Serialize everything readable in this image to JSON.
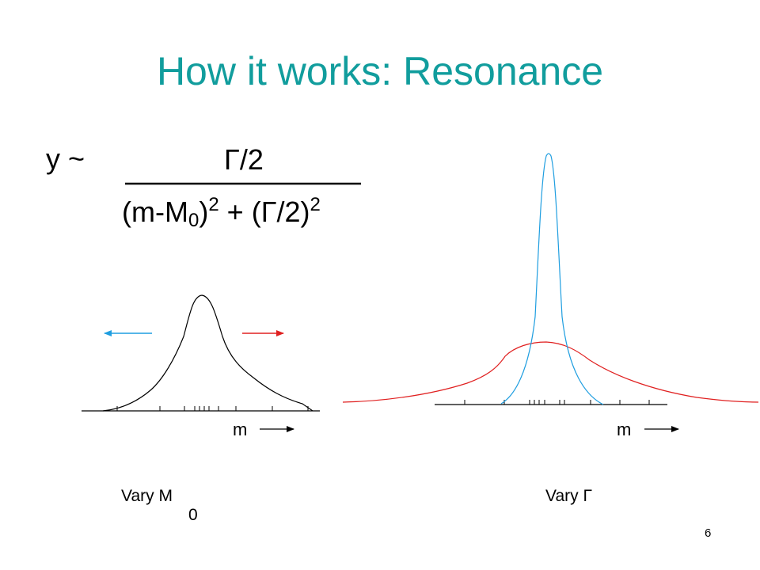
{
  "title": "How it works: Resonance",
  "colors": {
    "title": "#119d9d",
    "blue": "#1f9ee0",
    "red": "#e02020",
    "black": "#000000"
  },
  "formula": {
    "lhs": "y ~",
    "numerator": "Γ/2",
    "den_open": "(m-M",
    "den_sub": "0",
    "den_mid": ")",
    "den_sup1": "2",
    "den_plus": " + (Γ/2)",
    "den_sup2": "2"
  },
  "left_panel": {
    "axis_label": "m",
    "caption_main": "Vary M",
    "caption_sub": "0"
  },
  "right_panel": {
    "axis_label": "m",
    "caption": "Vary Γ"
  },
  "page_number": "6"
}
